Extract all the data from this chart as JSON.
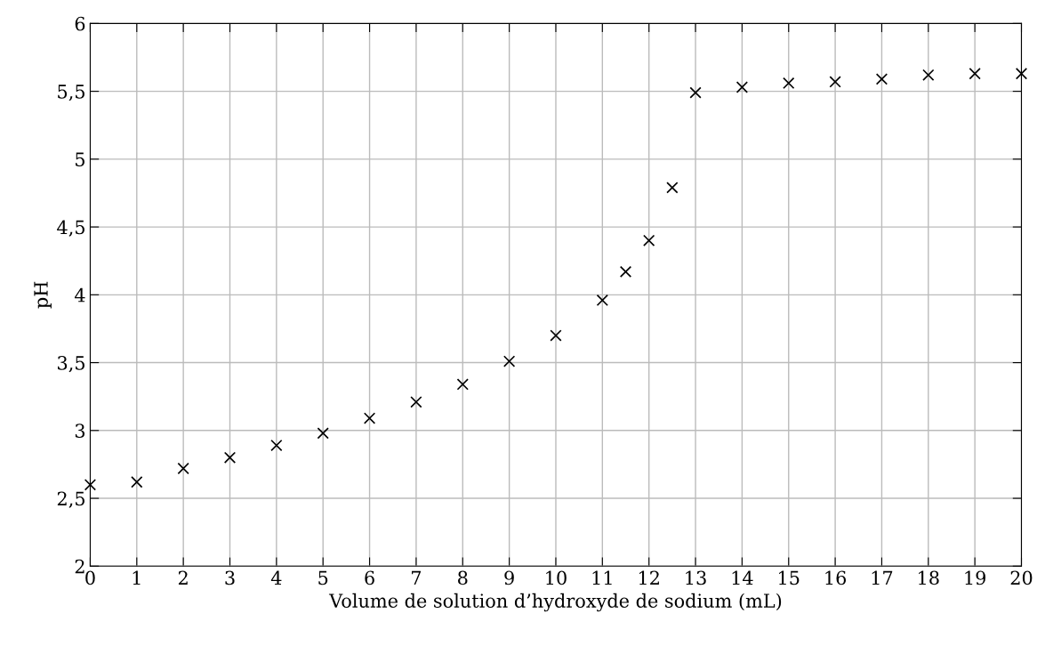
{
  "chart_data": {
    "type": "scatter",
    "xlabel": "Volume de solution d’hydroxyde de sodium (mL)",
    "ylabel": "pH",
    "x": [
      0,
      1,
      2,
      3,
      4,
      5,
      6,
      7,
      8,
      9,
      10,
      11,
      11.5,
      12,
      12.5,
      13,
      14,
      15,
      16,
      17,
      18,
      19,
      20
    ],
    "series": [
      {
        "color": "#000000",
        "values": [
          2.6,
          2.62,
          2.72,
          2.8,
          2.89,
          2.98,
          3.09,
          3.21,
          3.34,
          3.51,
          3.7,
          3.96,
          4.17,
          4.4,
          4.79,
          5.49,
          5.53,
          5.56,
          5.57,
          5.59,
          5.62,
          5.63,
          5.63
        ]
      }
    ],
    "xlim": [
      0,
      20
    ],
    "xticks": [
      0,
      1,
      2,
      3,
      4,
      5,
      6,
      7,
      8,
      9,
      10,
      11,
      12,
      13,
      14,
      15,
      16,
      17,
      18,
      19,
      20
    ],
    "ylim": [
      2,
      6
    ],
    "yticks": [
      2,
      {
        "value": 2.5,
        "label": "2,5"
      },
      3,
      {
        "value": 3.5,
        "label": "3,5"
      },
      4,
      {
        "value": 4.5,
        "label": "4,5"
      },
      5,
      {
        "value": 5.5,
        "label": "5,5"
      },
      6
    ],
    "grid": true,
    "marker": "cross"
  }
}
